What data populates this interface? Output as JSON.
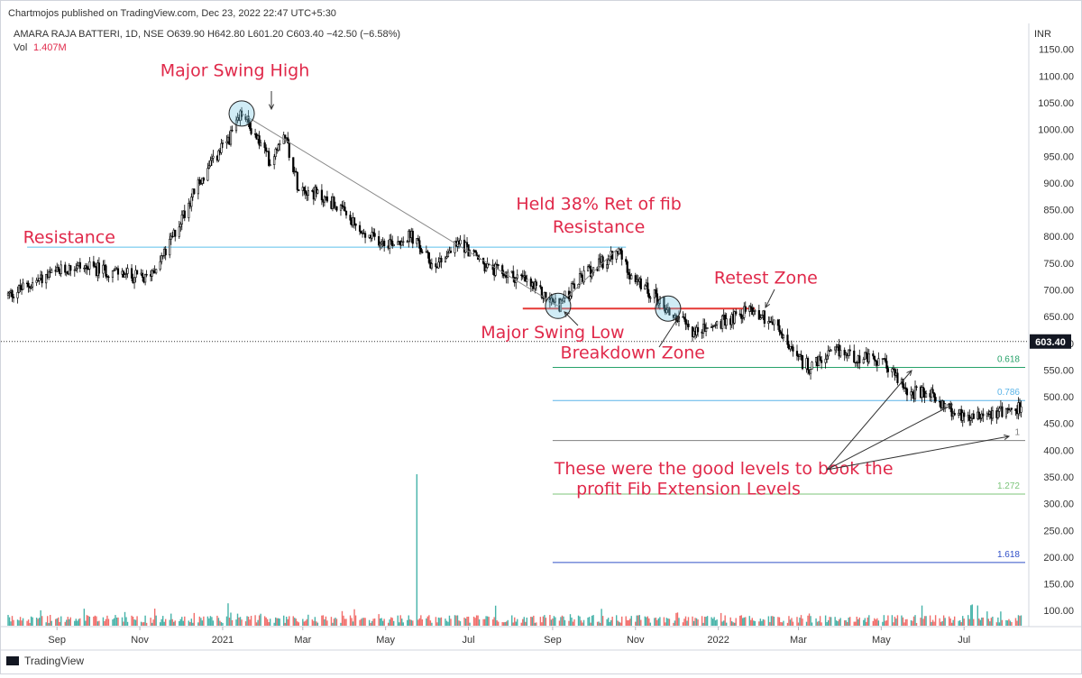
{
  "header": {
    "publisher_line": "Chartmojos published on TradingView.com, Dec 23, 2022 22:47 UTC+5:30",
    "symbol_line": "AMARA RAJA BATTERI, 1D, NSE  O639.90  H642.80  L601.20  C603.40  −42.50 (−6.58%)",
    "volume_label": "Vol",
    "volume_value": "1.407M",
    "currency": "INR"
  },
  "footer": {
    "brand": "TradingView"
  },
  "colors": {
    "up": "#26a69a",
    "down": "#ef5350",
    "candle": "#000000",
    "annotation": "#e0294a",
    "resistance": "#5bc0eb",
    "breakdown": "#e53935",
    "fib_0618": "#26a269",
    "fib_0786": "#5ab4e8",
    "fib_1": "#808080",
    "fib_1272": "#7cc47a",
    "fib_1618": "#3050c8"
  },
  "chart_data": {
    "type": "candlestick",
    "title": "AMARA RAJA BATTERI, 1D, NSE",
    "ylabel": "INR",
    "ylim": [
      70,
      1190
    ],
    "last_price": 603.4,
    "last_price_label": "603.40",
    "y_ticks": [
      "1150.00",
      "1100.00",
      "1050.00",
      "1000.00",
      "950.00",
      "900.00",
      "850.00",
      "800.00",
      "750.00",
      "700.00",
      "650.00",
      "600.00",
      "550.00",
      "500.00",
      "450.00",
      "400.00",
      "350.00",
      "300.00",
      "250.00",
      "200.00",
      "150.00",
      "100.00"
    ],
    "y_tick_values": [
      1150,
      1100,
      1050,
      1000,
      950,
      900,
      850,
      800,
      750,
      700,
      650,
      600,
      550,
      500,
      450,
      400,
      350,
      300,
      250,
      200,
      150,
      100
    ],
    "x_ticks": [
      {
        "label": "Sep",
        "date": "2020-09-01"
      },
      {
        "label": "Nov",
        "date": "2020-11-01"
      },
      {
        "label": "2021",
        "date": "2021-01-01"
      },
      {
        "label": "Mar",
        "date": "2021-03-01"
      },
      {
        "label": "May",
        "date": "2021-05-01"
      },
      {
        "label": "Jul",
        "date": "2021-07-01"
      },
      {
        "label": "Sep",
        "date": "2021-09-01"
      },
      {
        "label": "Nov",
        "date": "2021-11-01"
      },
      {
        "label": "2022",
        "date": "2022-01-01"
      },
      {
        "label": "Mar",
        "date": "2022-03-01"
      },
      {
        "label": "May",
        "date": "2022-05-01"
      },
      {
        "label": "Jul",
        "date": "2022-07-01"
      }
    ],
    "x_range": [
      "2020-07-27",
      "2022-08-15"
    ],
    "price_path": [
      [
        "2020-07-27",
        690
      ],
      [
        "2020-08-20",
        720
      ],
      [
        "2020-09-15",
        745
      ],
      [
        "2020-10-10",
        735
      ],
      [
        "2020-11-05",
        720
      ],
      [
        "2020-11-20",
        770
      ],
      [
        "2020-12-10",
        880
      ],
      [
        "2020-12-25",
        940
      ],
      [
        "2021-01-10",
        1000
      ],
      [
        "2021-01-15",
        1030
      ],
      [
        "2021-01-25",
        990
      ],
      [
        "2021-02-05",
        940
      ],
      [
        "2021-02-15",
        1000
      ],
      [
        "2021-02-25",
        900
      ],
      [
        "2021-03-10",
        880
      ],
      [
        "2021-03-25",
        860
      ],
      [
        "2021-04-15",
        800
      ],
      [
        "2021-05-05",
        790
      ],
      [
        "2021-05-20",
        800
      ],
      [
        "2021-06-05",
        745
      ],
      [
        "2021-06-25",
        790
      ],
      [
        "2021-07-15",
        740
      ],
      [
        "2021-08-10",
        720
      ],
      [
        "2021-08-25",
        690
      ],
      [
        "2021-09-05",
        670
      ],
      [
        "2021-09-25",
        730
      ],
      [
        "2021-10-20",
        770
      ],
      [
        "2021-11-01",
        715
      ],
      [
        "2021-11-15",
        690
      ],
      [
        "2021-11-25",
        660
      ],
      [
        "2021-12-15",
        620
      ],
      [
        "2022-01-05",
        640
      ],
      [
        "2022-01-25",
        665
      ],
      [
        "2022-02-10",
        640
      ],
      [
        "2022-02-28",
        570
      ],
      [
        "2022-03-10",
        555
      ],
      [
        "2022-03-30",
        585
      ],
      [
        "2022-04-20",
        570
      ],
      [
        "2022-05-05",
        560
      ],
      [
        "2022-05-20",
        510
      ],
      [
        "2022-06-10",
        500
      ],
      [
        "2022-06-25",
        465
      ],
      [
        "2022-07-15",
        470
      ],
      [
        "2022-08-10",
        478
      ]
    ],
    "volume_spike": {
      "date": "2021-05-24",
      "value_relative": 1.0
    },
    "horizontal_levels": [
      {
        "name": "resistance",
        "value": 780,
        "start": "2020-08-10",
        "end": "2021-10-25",
        "color_key": "resistance"
      },
      {
        "name": "breakdown",
        "value": 665,
        "start": "2021-08-10",
        "end": "2022-01-28",
        "color_key": "breakdown"
      }
    ],
    "fib_levels": [
      {
        "label": "0.618",
        "value": 555,
        "color_key": "fib_0618"
      },
      {
        "label": "0.786",
        "value": 493,
        "color_key": "fib_0786"
      },
      {
        "label": "1",
        "value": 418,
        "color_key": "fib_1"
      },
      {
        "label": "1.272",
        "value": 318,
        "color_key": "fib_1272"
      },
      {
        "label": "1.618",
        "value": 190,
        "color_key": "fib_1618"
      }
    ],
    "fib_start": "2021-09-01",
    "fib_end": "2022-08-15",
    "trendlines": [
      {
        "from": [
          "2021-01-15",
          1030
        ],
        "to": [
          "2021-09-05",
          670
        ]
      },
      {
        "from": [
          "2021-09-05",
          670
        ],
        "to": [
          "2021-10-20",
          780
        ]
      }
    ],
    "circles": [
      {
        "name": "swing-high",
        "date": "2021-01-15",
        "value": 1030
      },
      {
        "name": "swing-low",
        "date": "2021-09-05",
        "value": 670
      },
      {
        "name": "breakdown",
        "date": "2021-11-25",
        "value": 665
      }
    ],
    "annotations": [
      {
        "text": "Major Swing High",
        "date": "2021-01-10",
        "value": 1100
      },
      {
        "text": "Resistance",
        "date": "2020-09-10",
        "value": 788
      },
      {
        "text": "Held 38% Ret of fib",
        "date": "2021-10-05",
        "value": 850
      },
      {
        "text": "Resistance",
        "date": "2021-10-05",
        "value": 807
      },
      {
        "text": "Retest Zone",
        "date": "2022-02-05",
        "value": 712
      },
      {
        "text": "Major Swing Low",
        "date": "2021-09-01",
        "value": 610
      },
      {
        "text": "Breakdown Zone",
        "date": "2021-10-30",
        "value": 572
      },
      {
        "text": "These were the good levels to book the",
        "date": "2022-01-05",
        "value": 355
      },
      {
        "text": "profit  Fib Extension Levels",
        "date": "2021-12-10",
        "value": 317
      }
    ]
  }
}
